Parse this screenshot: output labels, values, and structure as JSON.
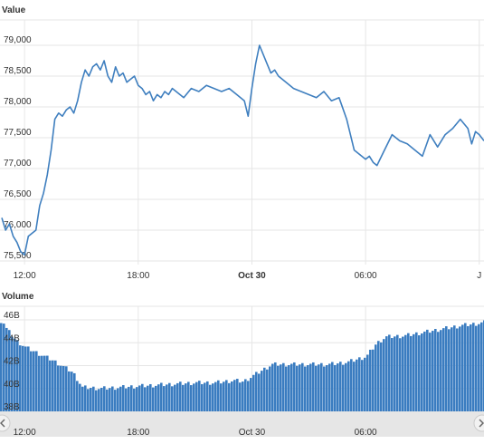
{
  "price_panel": {
    "title": "Value"
  },
  "volume_panel": {
    "title": "Volume"
  },
  "footer_text": "",
  "colors": {
    "line": "#3f7fbf",
    "bars": "#3a7cc0",
    "grid": "#e6e6e6",
    "navigator": "#e6e6e6"
  },
  "chart_data": [
    {
      "type": "line",
      "title": "Value",
      "ylim": [
        75500,
        79000
      ],
      "yticks": [
        75500,
        76000,
        76500,
        77000,
        77500,
        78000,
        78500,
        79000
      ],
      "ytick_labels": [
        "75,500",
        "76,000",
        "76,500",
        "77,000",
        "77,500",
        "78,000",
        "78,500",
        "79,000"
      ],
      "xlim": [
        10.8,
        36.25
      ],
      "xticks": [
        12,
        18,
        24,
        30,
        36
      ],
      "xtick_labels": [
        "12:00",
        "18:00",
        "Oct 30",
        "06:00",
        "J"
      ],
      "series": [
        {
          "x": [
            10.8,
            11.0,
            11.2,
            11.4,
            11.6,
            11.8,
            12.0,
            12.2,
            12.4,
            12.6,
            12.8,
            13.0,
            13.2,
            13.4,
            13.6,
            13.8,
            14.0,
            14.2,
            14.4,
            14.6,
            14.8,
            15.0,
            15.2,
            15.4,
            15.6,
            15.8,
            16.0,
            16.2,
            16.4,
            16.6,
            16.8,
            17.0,
            17.2,
            17.4,
            17.6,
            17.8,
            18.0,
            18.2,
            18.4,
            18.6,
            18.8,
            19.0,
            19.2,
            19.4,
            19.6,
            19.8,
            20.0,
            20.4,
            20.8,
            21.2,
            21.6,
            22.0,
            22.4,
            22.8,
            23.2,
            23.6,
            23.8,
            24.0,
            24.2,
            24.4,
            24.6,
            24.8,
            25.0,
            25.2,
            25.4,
            25.8,
            26.2,
            26.6,
            27.0,
            27.4,
            27.8,
            28.2,
            28.6,
            29.0,
            29.4,
            29.8,
            30.0,
            30.2,
            30.4,
            30.6,
            31.0,
            31.4,
            31.8,
            32.2,
            32.6,
            33.0,
            33.4,
            33.8,
            34.2,
            34.6,
            35.0,
            35.4,
            35.6,
            35.8,
            36.0,
            36.25
          ],
          "y": [
            76200,
            76000,
            76100,
            75900,
            75800,
            75650,
            75600,
            75900,
            75950,
            76000,
            76400,
            76600,
            76900,
            77300,
            77800,
            77900,
            77850,
            77950,
            78000,
            77900,
            78100,
            78400,
            78600,
            78500,
            78650,
            78700,
            78600,
            78750,
            78500,
            78400,
            78650,
            78500,
            78550,
            78400,
            78450,
            78500,
            78350,
            78300,
            78200,
            78250,
            78100,
            78200,
            78150,
            78250,
            78200,
            78300,
            78250,
            78150,
            78300,
            78250,
            78350,
            78300,
            78250,
            78300,
            78200,
            78100,
            77850,
            78300,
            78700,
            79000,
            78850,
            78700,
            78550,
            78600,
            78500,
            78400,
            78300,
            78250,
            78200,
            78150,
            78250,
            78100,
            78150,
            77800,
            77300,
            77200,
            77150,
            77200,
            77100,
            77050,
            77300,
            77550,
            77450,
            77400,
            77300,
            77200,
            77550,
            77350,
            77550,
            77650,
            77800,
            77650,
            77400,
            77600,
            77550,
            77450
          ]
        }
      ]
    },
    {
      "type": "bar",
      "title": "Volume",
      "ylim": [
        38,
        46
      ],
      "yticks": [
        38,
        40,
        42,
        44,
        46
      ],
      "ytick_labels": [
        "38B",
        "40B",
        "42B",
        "44B",
        "46B"
      ],
      "xlim": [
        10.8,
        36.25
      ],
      "xticks": [
        12,
        18,
        24,
        30
      ],
      "xtick_labels": [
        "12:00",
        "18:00",
        "Oct 30",
        "06:00"
      ],
      "series": [
        {
          "x": [
            10.8,
            11.0,
            11.5,
            12.0,
            12.5,
            13.0,
            13.5,
            14.0,
            14.5,
            15.0,
            16.0,
            17.0,
            18.0,
            19.0,
            20.0,
            21.0,
            22.0,
            23.0,
            23.5,
            24.0,
            24.5,
            25.0,
            26.0,
            27.0,
            28.0,
            29.0,
            30.0,
            30.5,
            31.0,
            32.0,
            33.0,
            34.0,
            35.0,
            36.0,
            36.25
          ],
          "y": [
            45.9,
            45.2,
            44.2,
            43.6,
            43.2,
            42.8,
            42.4,
            41.9,
            41.4,
            40.1,
            40.0,
            40.1,
            40.2,
            40.3,
            40.4,
            40.5,
            40.5,
            40.7,
            40.6,
            41.1,
            41.6,
            42.1,
            42.1,
            42.1,
            42.1,
            42.3,
            42.8,
            43.9,
            44.5,
            44.6,
            44.9,
            45.2,
            45.5,
            45.7,
            45.8
          ]
        }
      ]
    }
  ]
}
